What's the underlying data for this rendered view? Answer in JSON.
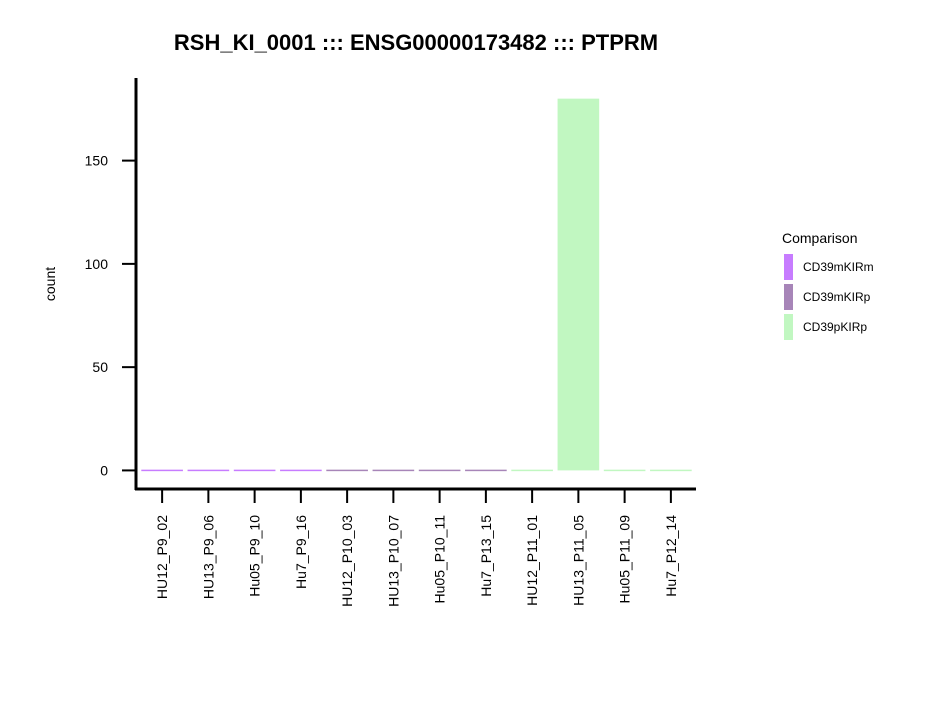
{
  "chart_data": {
    "type": "bar",
    "title": "RSH_KI_0001 ::: ENSG00000173482 ::: PTPRM",
    "xlabel": "",
    "ylabel": "count",
    "ylim": [
      -9,
      190
    ],
    "yticks": [
      0,
      50,
      100,
      150
    ],
    "grid": false,
    "legend_position": "right",
    "categories": [
      "HU12_P9_02",
      "HU13_P9_06",
      "Hu05_P9_10",
      "Hu7_P9_16",
      "HU12_P10_03",
      "HU13_P10_07",
      "Hu05_P10_11",
      "Hu7_P13_15",
      "HU12_P11_01",
      "HU13_P11_05",
      "Hu05_P11_09",
      "Hu7_P12_14"
    ],
    "values": [
      0,
      0,
      0,
      0,
      0,
      0,
      0,
      0,
      0,
      180,
      0,
      0
    ],
    "groups": [
      "CD39mKIRm",
      "CD39mKIRm",
      "CD39mKIRm",
      "CD39mKIRm",
      "CD39mKIRp",
      "CD39mKIRp",
      "CD39mKIRp",
      "CD39mKIRp",
      "CD39pKIRp",
      "CD39pKIRp",
      "CD39pKIRp",
      "CD39pKIRp"
    ],
    "legend": {
      "title": "Comparison",
      "entries": [
        {
          "name": "CD39mKIRm",
          "color": "#c77cff"
        },
        {
          "name": "CD39mKIRp",
          "color": "#a785b8"
        },
        {
          "name": "CD39pKIRp",
          "color": "#c1f7c1"
        }
      ]
    }
  }
}
